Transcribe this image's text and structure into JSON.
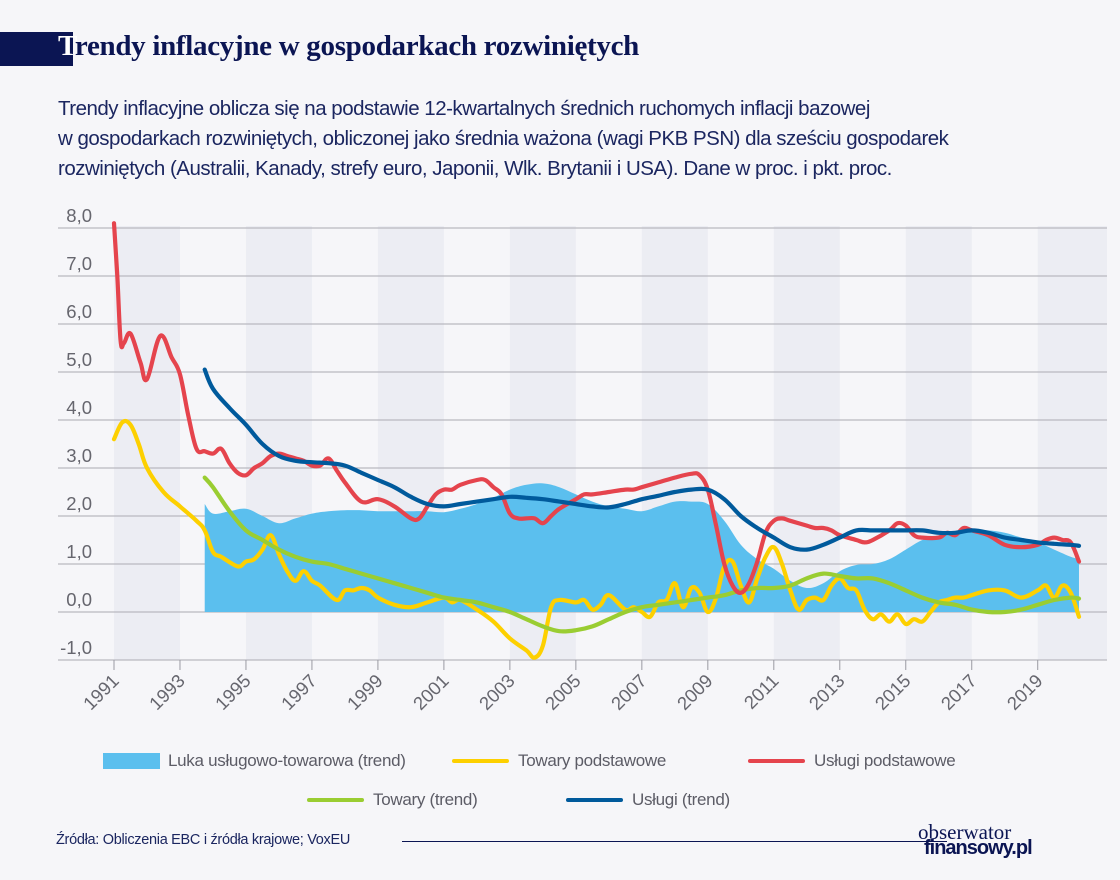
{
  "header": {
    "title": "Trendy inflacyjne w gospodarkach rozwiniętych",
    "title_first_letter": "T",
    "title_rest": "rendy inflacyjne w gospodarkach rozwiniętych",
    "subtitle_lines": [
      "Trendy inflacyjne oblicza się na podstawie 12-kwartalnych średnich ruchomych inflacji bazowej",
      "w gospodarkach rozwiniętych, obliczonej jako średnia ważona (wagi PKB PSN) dla sześciu gospodarek",
      "rozwiniętych (Australii, Kanady, strefy euro, Japonii, Wlk. Brytanii i USA). Dane w proc. i pkt. proc."
    ]
  },
  "colors": {
    "title_bar": "#0b1553",
    "area": "#5bbfee",
    "towary_podstawowe": "#fdd000",
    "uslugi_podstawowe": "#e5444d",
    "towary_trend": "#9acd32",
    "uslugi_trend": "#005a9c",
    "band": "#ecedf3"
  },
  "chart_data": {
    "type": "line",
    "title": "Trendy inflacyjne w gospodarkach rozwiniętych",
    "xlabel": "",
    "ylabel": "",
    "xlim": [
      1991,
      2021.1
    ],
    "ylim": [
      -1.0,
      8.0
    ],
    "yticks": [
      -1.0,
      0.0,
      1.0,
      2.0,
      3.0,
      4.0,
      5.0,
      6.0,
      7.0,
      8.0
    ],
    "ytick_labels": [
      "-1,0",
      "0,0",
      "1,0",
      "2,0",
      "3,0",
      "4,0",
      "5,0",
      "6,0",
      "7,0",
      "8,0"
    ],
    "xticks": [
      1991,
      1993,
      1995,
      1997,
      1999,
      2001,
      2003,
      2005,
      2007,
      2009,
      2011,
      2013,
      2015,
      2017,
      2019
    ],
    "xtick_labels": [
      "1991",
      "1993",
      "1995",
      "1997",
      "1999",
      "2001",
      "2003",
      "2005",
      "2007",
      "2009",
      "2011",
      "2013",
      "2015",
      "2017",
      "2019"
    ],
    "grid": true,
    "shaded_year_bands": [
      [
        1991,
        1993
      ],
      [
        1995,
        1997
      ],
      [
        1999,
        2001
      ],
      [
        2003,
        2005
      ],
      [
        2007,
        2009
      ],
      [
        2011,
        2013
      ],
      [
        2015,
        2017
      ],
      [
        2019,
        2021.1
      ]
    ],
    "legend_position": "bottom",
    "series": [
      {
        "name": "Luka usługowo-towarowa (trend)",
        "kind": "area",
        "x": [
          1993.75,
          1993.75,
          1994.0,
          1994.5,
          1995.0,
          1995.5,
          1996.0,
          1996.5,
          1997.0,
          1997.5,
          1998.0,
          1998.5,
          1999.0,
          1999.5,
          2000.0,
          2000.5,
          2001.0,
          2001.5,
          2002.0,
          2002.5,
          2003.0,
          2003.5,
          2004.0,
          2004.5,
          2005.0,
          2005.5,
          2006.0,
          2006.5,
          2007.0,
          2007.5,
          2008.0,
          2008.5,
          2009.0,
          2009.5,
          2010.0,
          2010.5,
          2011.0,
          2011.5,
          2012.0,
          2012.5,
          2013.0,
          2013.5,
          2014.0,
          2014.5,
          2015.0,
          2015.5,
          2016.0,
          2016.5,
          2017.0,
          2017.5,
          2018.0,
          2018.5,
          2019.0,
          2019.5,
          2020.0,
          2020.25
        ],
        "values": [
          0.0,
          2.25,
          2.05,
          2.1,
          2.15,
          2.0,
          1.85,
          1.95,
          2.05,
          2.1,
          2.12,
          2.12,
          2.1,
          2.1,
          2.1,
          2.1,
          2.08,
          2.15,
          2.25,
          2.38,
          2.55,
          2.65,
          2.68,
          2.6,
          2.45,
          2.3,
          2.2,
          2.15,
          2.1,
          2.2,
          2.3,
          2.3,
          2.25,
          1.9,
          1.4,
          1.1,
          0.9,
          0.65,
          0.5,
          0.6,
          0.85,
          0.98,
          1.0,
          1.1,
          1.3,
          1.5,
          1.6,
          1.65,
          1.7,
          1.7,
          1.65,
          1.55,
          1.45,
          1.3,
          1.15,
          1.1
        ]
      },
      {
        "name": "Towary podstawowe",
        "kind": "line",
        "x": [
          1991.0,
          1991.25,
          1991.5,
          1991.75,
          1992.0,
          1992.5,
          1993.0,
          1993.5,
          1993.75,
          1994.0,
          1994.25,
          1994.75,
          1995.0,
          1995.25,
          1995.5,
          1995.75,
          1996.0,
          1996.25,
          1996.5,
          1996.75,
          1997.0,
          1997.25,
          1997.75,
          1998.0,
          1998.25,
          1998.5,
          1998.75,
          1999.0,
          1999.5,
          2000.0,
          2000.5,
          2001.0,
          2001.25,
          2001.5,
          2002.0,
          2002.5,
          2003.0,
          2003.5,
          2003.75,
          2004.0,
          2004.25,
          2004.5,
          2005.0,
          2005.25,
          2005.5,
          2005.75,
          2006.0,
          2006.5,
          2006.75,
          2007.0,
          2007.25,
          2007.5,
          2007.75,
          2008.0,
          2008.25,
          2008.5,
          2008.75,
          2009.0,
          2009.25,
          2009.5,
          2009.75,
          2010.0,
          2010.25,
          2010.5,
          2010.75,
          2011.0,
          2011.25,
          2011.5,
          2011.75,
          2012.0,
          2012.25,
          2012.5,
          2012.75,
          2013.0,
          2013.25,
          2013.5,
          2013.75,
          2014.0,
          2014.25,
          2014.5,
          2014.75,
          2015.0,
          2015.25,
          2015.5,
          2015.75,
          2016.0,
          2016.25,
          2016.5,
          2016.75,
          2017.0,
          2017.5,
          2018.0,
          2018.5,
          2019.0,
          2019.25,
          2019.5,
          2019.75,
          2020.0,
          2020.25
        ],
        "values": [
          3.6,
          3.95,
          3.9,
          3.5,
          3.0,
          2.5,
          2.2,
          1.9,
          1.7,
          1.25,
          1.15,
          0.95,
          1.05,
          1.1,
          1.3,
          1.6,
          1.2,
          0.85,
          0.65,
          0.85,
          0.65,
          0.55,
          0.25,
          0.45,
          0.45,
          0.5,
          0.45,
          0.3,
          0.15,
          0.1,
          0.2,
          0.3,
          0.2,
          0.25,
          0.05,
          -0.2,
          -0.55,
          -0.8,
          -0.95,
          -0.7,
          0.1,
          0.25,
          0.2,
          0.25,
          0.05,
          0.15,
          0.35,
          0.05,
          0.1,
          0.0,
          -0.1,
          0.2,
          0.25,
          0.6,
          0.1,
          0.5,
          0.4,
          0.0,
          0.3,
          0.95,
          1.05,
          0.55,
          0.2,
          0.7,
          1.15,
          1.35,
          1.0,
          0.45,
          0.05,
          0.25,
          0.3,
          0.25,
          0.55,
          0.7,
          0.5,
          0.45,
          0.05,
          -0.15,
          -0.05,
          -0.2,
          -0.05,
          -0.25,
          -0.15,
          -0.2,
          0.0,
          0.2,
          0.25,
          0.3,
          0.3,
          0.35,
          0.45,
          0.45,
          0.3,
          0.45,
          0.55,
          0.3,
          0.55,
          0.4,
          -0.1
        ]
      },
      {
        "name": "Usługi podstawowe",
        "kind": "line",
        "x": [
          1991.0,
          1991.1,
          1991.2,
          1991.3,
          1991.5,
          1991.8,
          1992.0,
          1992.4,
          1992.75,
          1993.0,
          1993.25,
          1993.5,
          1993.75,
          1994.0,
          1994.25,
          1994.5,
          1994.75,
          1995.0,
          1995.25,
          1995.5,
          1995.75,
          1996.0,
          1996.25,
          1996.5,
          1996.75,
          1997.0,
          1997.25,
          1997.5,
          1997.75,
          1998.0,
          1998.5,
          1999.0,
          1999.5,
          2000.0,
          2000.25,
          2000.5,
          2000.75,
          2001.0,
          2001.25,
          2001.5,
          2002.0,
          2002.25,
          2002.5,
          2002.75,
          2003.0,
          2003.25,
          2003.5,
          2003.75,
          2004.0,
          2004.25,
          2004.5,
          2005.0,
          2005.25,
          2005.5,
          2006.0,
          2006.5,
          2006.75,
          2007.0,
          2007.5,
          2008.0,
          2008.5,
          2008.75,
          2009.0,
          2009.25,
          2009.5,
          2009.75,
          2010.0,
          2010.25,
          2010.5,
          2010.75,
          2011.0,
          2011.25,
          2011.5,
          2012.0,
          2012.25,
          2012.5,
          2012.75,
          2013.0,
          2013.5,
          2013.75,
          2014.0,
          2014.5,
          2014.75,
          2015.0,
          2015.25,
          2015.5,
          2016.0,
          2016.25,
          2016.5,
          2016.75,
          2017.0,
          2017.5,
          2018.0,
          2018.5,
          2019.0,
          2019.25,
          2019.5,
          2019.75,
          2020.0,
          2020.25
        ],
        "values": [
          8.1,
          7.0,
          5.65,
          5.6,
          5.8,
          5.2,
          4.85,
          5.75,
          5.3,
          4.95,
          4.1,
          3.4,
          3.35,
          3.3,
          3.4,
          3.1,
          2.9,
          2.85,
          3.0,
          3.1,
          3.25,
          3.3,
          3.25,
          3.2,
          3.15,
          3.05,
          3.05,
          3.2,
          2.95,
          2.7,
          2.3,
          2.35,
          2.2,
          1.95,
          1.95,
          2.2,
          2.45,
          2.55,
          2.55,
          2.65,
          2.75,
          2.75,
          2.6,
          2.45,
          2.05,
          1.95,
          1.95,
          1.95,
          1.85,
          2.0,
          2.15,
          2.35,
          2.45,
          2.45,
          2.5,
          2.55,
          2.55,
          2.6,
          2.7,
          2.8,
          2.88,
          2.85,
          2.55,
          1.8,
          1.0,
          0.55,
          0.4,
          0.6,
          1.05,
          1.65,
          1.9,
          1.95,
          1.9,
          1.8,
          1.75,
          1.75,
          1.7,
          1.6,
          1.5,
          1.45,
          1.5,
          1.7,
          1.85,
          1.8,
          1.6,
          1.55,
          1.55,
          1.65,
          1.6,
          1.75,
          1.7,
          1.6,
          1.4,
          1.35,
          1.4,
          1.5,
          1.55,
          1.5,
          1.45,
          1.05
        ]
      },
      {
        "name": "Towary (trend)",
        "kind": "line",
        "x": [
          1993.75,
          1994.0,
          1994.5,
          1995.0,
          1995.5,
          1996.0,
          1996.5,
          1997.0,
          1997.5,
          1998.0,
          1998.5,
          1999.0,
          1999.5,
          2000.0,
          2000.5,
          2001.0,
          2001.5,
          2002.0,
          2002.5,
          2003.0,
          2003.5,
          2004.0,
          2004.5,
          2005.0,
          2005.5,
          2006.0,
          2006.5,
          2007.0,
          2007.5,
          2008.0,
          2008.5,
          2009.0,
          2009.5,
          2010.0,
          2010.5,
          2011.0,
          2011.5,
          2012.0,
          2012.5,
          2013.0,
          2013.5,
          2014.0,
          2014.5,
          2015.0,
          2015.5,
          2016.0,
          2016.5,
          2017.0,
          2017.5,
          2018.0,
          2018.5,
          2019.0,
          2019.5,
          2020.0,
          2020.25
        ],
        "values": [
          2.8,
          2.6,
          2.1,
          1.7,
          1.5,
          1.3,
          1.15,
          1.05,
          1.0,
          0.9,
          0.8,
          0.7,
          0.6,
          0.5,
          0.4,
          0.3,
          0.25,
          0.2,
          0.1,
          0.0,
          -0.15,
          -0.3,
          -0.4,
          -0.38,
          -0.3,
          -0.15,
          0.0,
          0.1,
          0.15,
          0.2,
          0.25,
          0.3,
          0.35,
          0.45,
          0.5,
          0.5,
          0.55,
          0.7,
          0.8,
          0.75,
          0.7,
          0.7,
          0.6,
          0.45,
          0.3,
          0.2,
          0.15,
          0.05,
          0.0,
          0.0,
          0.05,
          0.15,
          0.25,
          0.3,
          0.28
        ]
      },
      {
        "name": "Usługi (trend)",
        "kind": "line",
        "x": [
          1993.75,
          1994.0,
          1994.5,
          1995.0,
          1995.5,
          1996.0,
          1996.5,
          1997.0,
          1997.5,
          1998.0,
          1998.5,
          1999.0,
          1999.5,
          2000.0,
          2000.5,
          2001.0,
          2001.5,
          2002.0,
          2002.5,
          2003.0,
          2003.5,
          2004.0,
          2004.5,
          2005.0,
          2005.5,
          2006.0,
          2006.5,
          2007.0,
          2007.5,
          2008.0,
          2008.5,
          2009.0,
          2009.5,
          2010.0,
          2010.5,
          2011.0,
          2011.5,
          2012.0,
          2012.5,
          2013.0,
          2013.5,
          2014.0,
          2014.5,
          2015.0,
          2015.5,
          2016.0,
          2016.5,
          2017.0,
          2017.5,
          2018.0,
          2018.5,
          2019.0,
          2019.5,
          2020.0,
          2020.25
        ],
        "values": [
          5.05,
          4.65,
          4.25,
          3.9,
          3.5,
          3.25,
          3.15,
          3.12,
          3.1,
          3.05,
          2.9,
          2.75,
          2.6,
          2.4,
          2.25,
          2.2,
          2.25,
          2.3,
          2.35,
          2.4,
          2.38,
          2.35,
          2.3,
          2.25,
          2.2,
          2.18,
          2.25,
          2.35,
          2.42,
          2.5,
          2.55,
          2.55,
          2.35,
          2.0,
          1.75,
          1.55,
          1.35,
          1.3,
          1.4,
          1.55,
          1.7,
          1.7,
          1.7,
          1.7,
          1.7,
          1.65,
          1.65,
          1.7,
          1.65,
          1.55,
          1.5,
          1.45,
          1.42,
          1.4,
          1.38
        ]
      }
    ]
  },
  "legend": {
    "items": [
      {
        "label": "Luka usługowo-towarowa (trend)",
        "swatch": "area"
      },
      {
        "label": "Towary podstawowe",
        "swatch": "line"
      },
      {
        "label": "Usługi podstawowe",
        "swatch": "line"
      },
      {
        "label": "Towary (trend)",
        "swatch": "line"
      },
      {
        "label": "Usługi (trend)",
        "swatch": "line"
      }
    ]
  },
  "footer": {
    "source": "Źródła: Obliczenia EBC i źródła krajowe; VoxEU",
    "logo_line1": "obserwator",
    "logo_line2": "finansowy.pl"
  }
}
